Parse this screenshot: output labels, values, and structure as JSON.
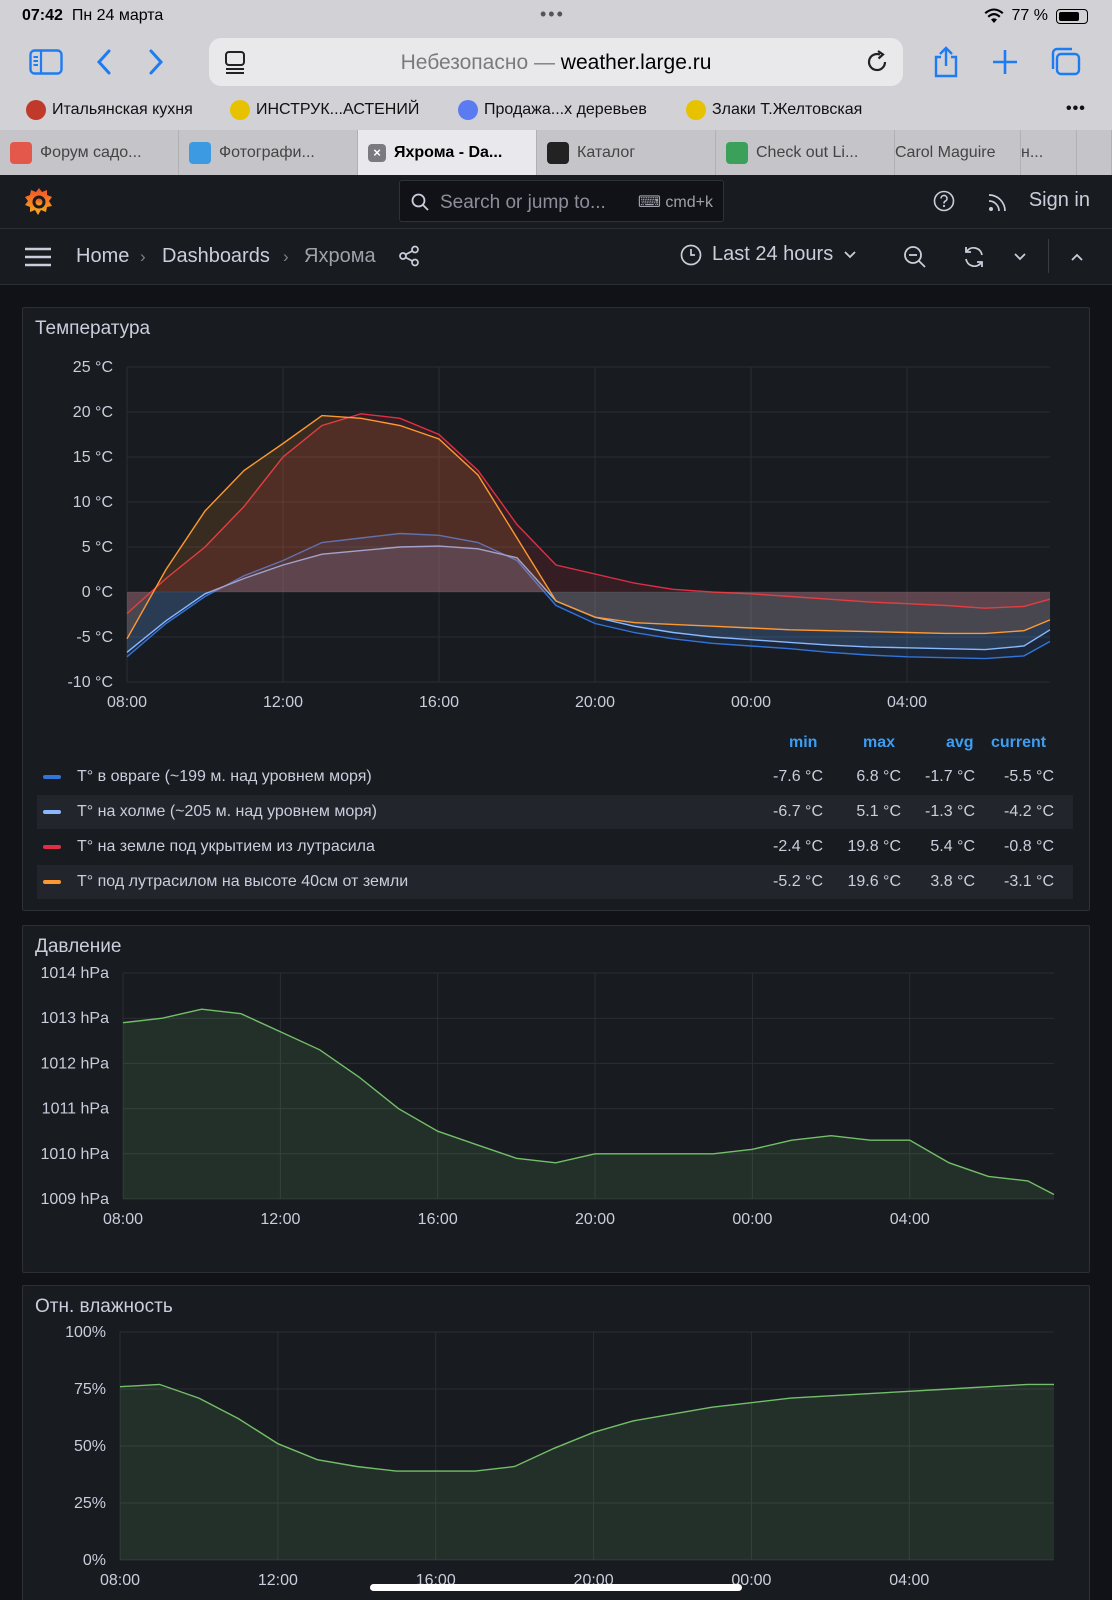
{
  "status_bar": {
    "time": "07:42",
    "date": "Пн 24 марта",
    "battery": "77 %",
    "battery_fraction": 0.77
  },
  "browser": {
    "url_prefix": "Небезопасно — ",
    "url_host": "weather.large.ru",
    "bookmarks": [
      {
        "label": "Итальянская кухня",
        "color": "#c0392b"
      },
      {
        "label": "ИНСТРУК...АСТЕНИЙ",
        "color": "#e6c200"
      },
      {
        "label": "Продажа...х деревьев",
        "color": "#5b7cf0"
      },
      {
        "label": "Злаки Т.Желтовская",
        "color": "#e6c200"
      }
    ],
    "tabs": [
      {
        "label": "Форум садо...",
        "color": "#e4574b",
        "active": false
      },
      {
        "label": "Фотографи...",
        "color": "#3b9ae1",
        "active": false
      },
      {
        "label": "Яхрома - Da...",
        "color": "#7a7a80",
        "active": true
      },
      {
        "label": "Каталог",
        "color": "#222222",
        "active": false
      },
      {
        "label": "Check out Li...",
        "color": "#3aa05a",
        "active": false
      },
      {
        "label": "Carol Maguire",
        "color": "",
        "active": false
      },
      {
        "label": "н...",
        "color": "",
        "active": false
      }
    ]
  },
  "grafana": {
    "search_placeholder": "Search or jump to...",
    "search_shortcut": "cmd+k",
    "signin": "Sign in",
    "breadcrumbs": [
      "Home",
      "Dashboards",
      "Яхрома"
    ],
    "time_range": "Last 24 hours"
  },
  "temperature_panel": {
    "title": "Температура",
    "legend_headers": [
      "min",
      "max",
      "avg",
      "current"
    ],
    "legend": [
      {
        "name": "T° в овраге (~199 м. над уровнем моря)",
        "color": "#3274d9",
        "min": "-7.6 °C",
        "max": "6.8 °C",
        "avg": "-1.7 °C",
        "current": "-5.5 °C"
      },
      {
        "name": "T° на холме (~205 м. над уровнем моря)",
        "color": "#8ab8ff",
        "min": "-6.7 °C",
        "max": "5.1 °C",
        "avg": "-1.3 °C",
        "current": "-4.2 °C"
      },
      {
        "name": "T° на земле под укрытием из лутрасила",
        "color": "#e02f44",
        "min": "-2.4 °C",
        "max": "19.8 °C",
        "avg": "5.4 °C",
        "current": "-0.8 °C"
      },
      {
        "name": "T° под лутрасилом на высоте 40см от земли",
        "color": "#ff9830",
        "min": "-5.2 °C",
        "max": "19.6 °C",
        "avg": "3.8 °C",
        "current": "-3.1 °C"
      }
    ]
  },
  "pressure_panel": {
    "title": "Давление"
  },
  "humidity_panel": {
    "title": "Отн. влажность"
  },
  "chart_data": [
    {
      "type": "line",
      "title": "Температура",
      "x": [
        "08:00",
        "09:00",
        "10:00",
        "11:00",
        "12:00",
        "13:00",
        "14:00",
        "15:00",
        "16:00",
        "17:00",
        "18:00",
        "19:00",
        "20:00",
        "21:00",
        "22:00",
        "23:00",
        "00:00",
        "01:00",
        "02:00",
        "03:00",
        "04:00",
        "05:00",
        "06:00",
        "07:00",
        "07:40"
      ],
      "x_ticks": [
        "08:00",
        "12:00",
        "16:00",
        "20:00",
        "00:00",
        "04:00"
      ],
      "y_ticks": [
        "-10 °C",
        "-5 °C",
        "0 °C",
        "5 °C",
        "10 °C",
        "15 °C",
        "20 °C",
        "25 °C"
      ],
      "ylim": [
        -10,
        25
      ],
      "series": [
        {
          "name": "T° в овраге (~199 м. над уровнем моря)",
          "color": "#3274d9",
          "values": [
            -7.2,
            -3.5,
            -0.5,
            1.8,
            3.5,
            5.5,
            6.0,
            6.5,
            6.3,
            5.5,
            3.5,
            -1.5,
            -3.5,
            -4.5,
            -5.2,
            -5.7,
            -6.0,
            -6.3,
            -6.7,
            -7.0,
            -7.2,
            -7.3,
            -7.4,
            -7.1,
            -5.5
          ]
        },
        {
          "name": "T° на холме (~205 м. над уровнем моря)",
          "color": "#8ab8ff",
          "values": [
            -6.7,
            -3.2,
            -0.2,
            1.5,
            3.0,
            4.2,
            4.6,
            5.0,
            5.1,
            4.8,
            3.8,
            -1.0,
            -2.8,
            -3.8,
            -4.5,
            -5.0,
            -5.3,
            -5.6,
            -5.9,
            -6.1,
            -6.2,
            -6.3,
            -6.4,
            -6.0,
            -4.2
          ]
        },
        {
          "name": "T° на земле под укрытием из лутрасила",
          "color": "#e02f44",
          "values": [
            -2.4,
            1.5,
            5.0,
            9.5,
            15.0,
            18.5,
            19.8,
            19.3,
            17.5,
            13.5,
            7.5,
            3.0,
            2.0,
            1.0,
            0.3,
            0.0,
            -0.2,
            -0.5,
            -0.8,
            -1.1,
            -1.3,
            -1.5,
            -1.8,
            -1.6,
            -0.8
          ]
        },
        {
          "name": "T° под лутрасилом на высоте 40см от земли",
          "color": "#ff9830",
          "values": [
            -5.2,
            2.5,
            9.0,
            13.5,
            16.5,
            19.6,
            19.3,
            18.5,
            17.0,
            13.0,
            6.0,
            -1.0,
            -2.8,
            -3.4,
            -3.6,
            -3.8,
            -4.0,
            -4.2,
            -4.3,
            -4.4,
            -4.5,
            -4.6,
            -4.6,
            -4.3,
            -3.1
          ]
        }
      ]
    },
    {
      "type": "area",
      "title": "Давление",
      "x": [
        "08:00",
        "09:00",
        "10:00",
        "11:00",
        "12:00",
        "13:00",
        "14:00",
        "15:00",
        "16:00",
        "17:00",
        "18:00",
        "19:00",
        "20:00",
        "21:00",
        "22:00",
        "23:00",
        "00:00",
        "01:00",
        "02:00",
        "03:00",
        "04:00",
        "05:00",
        "06:00",
        "07:00",
        "07:40"
      ],
      "x_ticks": [
        "08:00",
        "12:00",
        "16:00",
        "20:00",
        "00:00",
        "04:00"
      ],
      "y_ticks": [
        "1009 hPa",
        "1010 hPa",
        "1011 hPa",
        "1012 hPa",
        "1013 hPa",
        "1014 hPa"
      ],
      "ylim": [
        1009,
        1014
      ],
      "series": [
        {
          "name": "",
          "color": "#73bf69",
          "values": [
            1012.9,
            1013.0,
            1013.2,
            1013.1,
            1012.7,
            1012.3,
            1011.7,
            1011.0,
            1010.5,
            1010.2,
            1009.9,
            1009.8,
            1010.0,
            1010.0,
            1010.0,
            1010.0,
            1010.1,
            1010.3,
            1010.4,
            1010.3,
            1010.3,
            1009.8,
            1009.5,
            1009.4,
            1009.1
          ]
        }
      ]
    },
    {
      "type": "area",
      "title": "Отн. влажность",
      "x": [
        "08:00",
        "09:00",
        "10:00",
        "11:00",
        "12:00",
        "13:00",
        "14:00",
        "15:00",
        "16:00",
        "17:00",
        "18:00",
        "19:00",
        "20:00",
        "21:00",
        "22:00",
        "23:00",
        "00:00",
        "01:00",
        "02:00",
        "03:00",
        "04:00",
        "05:00",
        "06:00",
        "07:00",
        "07:40"
      ],
      "x_ticks": [
        "08:00",
        "12:00",
        "16:00",
        "20:00",
        "00:00",
        "04:00"
      ],
      "y_ticks": [
        "0%",
        "25%",
        "50%",
        "75%",
        "100%"
      ],
      "ylim": [
        0,
        100
      ],
      "series": [
        {
          "name": "",
          "color": "#73bf69",
          "values": [
            76,
            77,
            71,
            62,
            51,
            44,
            41,
            39,
            39,
            39,
            41,
            49,
            56,
            61,
            64,
            67,
            69,
            71,
            72,
            73,
            74,
            75,
            76,
            77,
            77
          ]
        }
      ]
    }
  ]
}
